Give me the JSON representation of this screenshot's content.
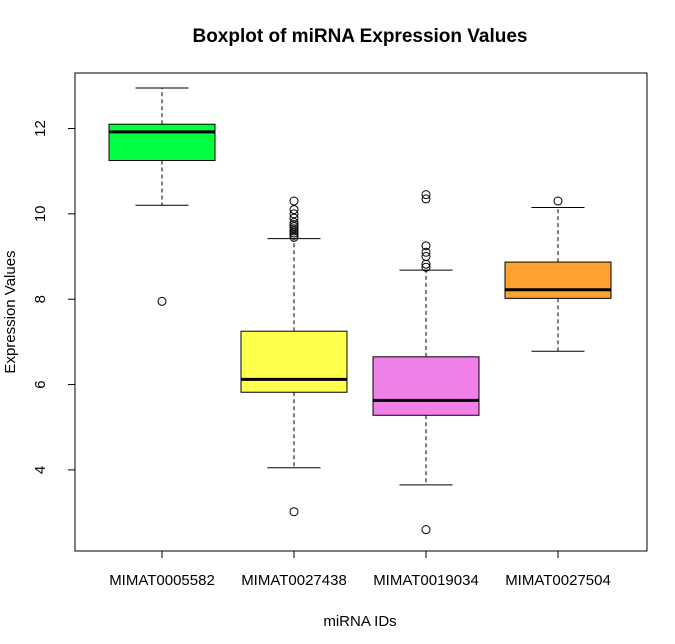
{
  "chart_data": {
    "type": "boxplot",
    "title": "Boxplot of miRNA Expression Values",
    "xlabel": "miRNA IDs",
    "ylabel": "Expression Values",
    "ylim": [
      2.1,
      13.3
    ],
    "yticks": [
      4,
      6,
      8,
      10,
      12
    ],
    "grid": false,
    "categories": [
      "MIMAT0005582",
      "MIMAT0027438",
      "MIMAT0019034",
      "MIMAT0027504"
    ],
    "boxes": [
      {
        "name": "MIMAT0005582",
        "color": "#00FF40",
        "min": 10.2,
        "q1": 11.25,
        "median": 11.92,
        "q3": 12.1,
        "max": 12.95,
        "outliers": [
          7.95
        ]
      },
      {
        "name": "MIMAT0027438",
        "color": "#FFFF4D",
        "min": 4.05,
        "q1": 5.82,
        "median": 6.12,
        "q3": 7.25,
        "max": 9.42,
        "outliers": [
          3.02,
          9.45,
          9.5,
          9.55,
          9.6,
          9.65,
          9.7,
          9.75,
          9.8,
          9.9,
          10.0,
          10.1,
          10.3
        ]
      },
      {
        "name": "MIMAT0019034",
        "color": "#F080E8",
        "min": 3.65,
        "q1": 5.28,
        "median": 5.63,
        "q3": 6.65,
        "max": 8.68,
        "outliers": [
          2.6,
          8.75,
          8.82,
          9.0,
          9.1,
          9.25,
          10.35,
          10.45
        ]
      },
      {
        "name": "MIMAT0027504",
        "color": "#FFA033",
        "min": 6.78,
        "q1": 8.02,
        "median": 8.22,
        "q3": 8.87,
        "max": 10.15,
        "outliers": [
          10.3
        ]
      }
    ]
  }
}
